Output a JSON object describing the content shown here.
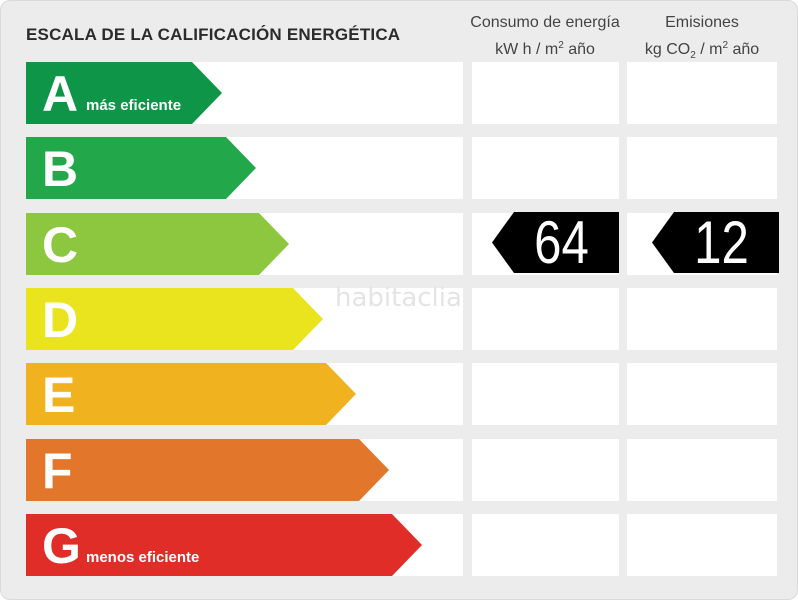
{
  "title": "ESCALA DE LA CALIFICACIÓN ENERGÉTICA",
  "columns": {
    "energy": {
      "line1": "Consumo de energía",
      "unit_prefix": "kW h  / m",
      "unit_sup": "2",
      "unit_suffix": " año"
    },
    "emissions": {
      "line1": "Emisiones",
      "unit_prefix": "kg CO",
      "unit_sub": "2",
      "unit_mid": " / m",
      "unit_sup": "2",
      "unit_suffix": " año"
    }
  },
  "ratings": [
    {
      "letter": "A",
      "sublabel": "más eficiente",
      "color": "#0e9547"
    },
    {
      "letter": "B",
      "sublabel": "",
      "color": "#22a84a"
    },
    {
      "letter": "C",
      "sublabel": "",
      "color": "#8dc63f"
    },
    {
      "letter": "D",
      "sublabel": "",
      "color": "#e9e41e"
    },
    {
      "letter": "E",
      "sublabel": "",
      "color": "#f0b21f"
    },
    {
      "letter": "F",
      "sublabel": "",
      "color": "#e2762a"
    },
    {
      "letter": "G",
      "sublabel": "menos eficiente",
      "color": "#e02d28"
    }
  ],
  "result": {
    "rating": "C",
    "energy_value": "64",
    "emissions_value": "12"
  },
  "watermark": "habitaclia"
}
